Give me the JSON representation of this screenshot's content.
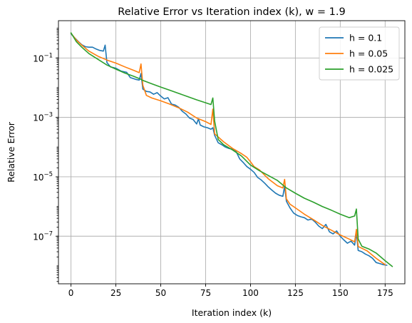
{
  "chart_data": {
    "type": "line",
    "title": "Relative Error vs Iteration index (k), w = 1.9",
    "xlabel": "Iteration index (k)",
    "ylabel": "Relative Error",
    "xlim": [
      -7,
      186
    ],
    "ylim": [
      2.5e-09,
      1.8
    ],
    "yscale": "log",
    "grid": true,
    "legend_position": "upper right",
    "x_ticks": [
      0,
      25,
      50,
      75,
      100,
      125,
      150,
      175
    ],
    "x_tick_labels": [
      "0",
      "25",
      "50",
      "75",
      "100",
      "125",
      "150",
      "175"
    ],
    "y_ticks": [
      0.1,
      0.001,
      1e-05,
      1e-07
    ],
    "y_tick_labels": [
      {
        "base": "10",
        "exp": "−1"
      },
      {
        "base": "10",
        "exp": "−3"
      },
      {
        "base": "10",
        "exp": "−5"
      },
      {
        "base": "10",
        "exp": "−7"
      }
    ],
    "series": [
      {
        "name": "h = 0.1",
        "color": "#1f77b4",
        "points": [
          [
            0,
            0.65
          ],
          [
            2,
            0.48
          ],
          [
            4,
            0.36
          ],
          [
            6,
            0.28
          ],
          [
            8,
            0.24
          ],
          [
            10,
            0.23
          ],
          [
            12,
            0.23
          ],
          [
            14,
            0.2
          ],
          [
            16,
            0.18
          ],
          [
            18,
            0.17
          ],
          [
            19,
            0.27
          ],
          [
            20,
            0.07
          ],
          [
            22,
            0.05
          ],
          [
            25,
            0.045
          ],
          [
            28,
            0.036
          ],
          [
            31,
            0.033
          ],
          [
            33,
            0.022
          ],
          [
            36,
            0.019
          ],
          [
            38,
            0.018
          ],
          [
            39,
            0.03
          ],
          [
            40,
            0.009
          ],
          [
            42,
            0.0075
          ],
          [
            44,
            0.0072
          ],
          [
            46,
            0.006
          ],
          [
            48,
            0.0068
          ],
          [
            50,
            0.0052
          ],
          [
            52,
            0.0042
          ],
          [
            54,
            0.0046
          ],
          [
            56,
            0.0028
          ],
          [
            58,
            0.0026
          ],
          [
            60,
            0.0022
          ],
          [
            62,
            0.0016
          ],
          [
            64,
            0.0013
          ],
          [
            66,
            0.00095
          ],
          [
            68,
            0.00085
          ],
          [
            70,
            0.0006
          ],
          [
            71,
            0.0009
          ],
          [
            72,
            0.00055
          ],
          [
            74,
            0.00048
          ],
          [
            76,
            0.00045
          ],
          [
            78,
            0.0004
          ],
          [
            79,
            0.00045
          ],
          [
            80,
            0.00025
          ],
          [
            82,
            0.00014
          ],
          [
            84,
            0.00012
          ],
          [
            86,
            0.0001
          ],
          [
            88,
            9e-05
          ],
          [
            90,
            8.5e-05
          ],
          [
            92,
            7e-05
          ],
          [
            94,
            4e-05
          ],
          [
            96,
            3e-05
          ],
          [
            98,
            2.2e-05
          ],
          [
            100,
            1.8e-05
          ],
          [
            102,
            1.4e-05
          ],
          [
            104,
            9.5e-06
          ],
          [
            106,
            7.8e-06
          ],
          [
            108,
            6e-06
          ],
          [
            110,
            4.5e-06
          ],
          [
            112,
            3.5e-06
          ],
          [
            114,
            2.8e-06
          ],
          [
            116,
            2.4e-06
          ],
          [
            118,
            2.2e-06
          ],
          [
            119,
            4.8e-06
          ],
          [
            120,
            1.5e-06
          ],
          [
            122,
            9e-07
          ],
          [
            124,
            6e-07
          ],
          [
            126,
            5e-07
          ],
          [
            128,
            4.5e-07
          ],
          [
            130,
            4.2e-07
          ],
          [
            132,
            3.5e-07
          ],
          [
            134,
            3.8e-07
          ],
          [
            136,
            3e-07
          ],
          [
            138,
            2.2e-07
          ],
          [
            140,
            1.8e-07
          ],
          [
            142,
            2.5e-07
          ],
          [
            144,
            1.4e-07
          ],
          [
            146,
            1.2e-07
          ],
          [
            148,
            1.5e-07
          ],
          [
            150,
            1e-07
          ],
          [
            152,
            7.5e-08
          ],
          [
            154,
            5.8e-08
          ],
          [
            156,
            6.8e-08
          ],
          [
            158,
            5e-08
          ],
          [
            159,
            1.3e-07
          ],
          [
            160,
            3.3e-08
          ],
          [
            162,
            3e-08
          ],
          [
            164,
            2.5e-08
          ],
          [
            166,
            2.2e-08
          ],
          [
            168,
            1.8e-08
          ],
          [
            170,
            1.3e-08
          ],
          [
            172,
            1.2e-08
          ],
          [
            174,
            1.1e-08
          ],
          [
            176,
            1.05e-08
          ]
        ]
      },
      {
        "name": "h = 0.05",
        "color": "#ff7f0e",
        "points": [
          [
            0,
            0.68
          ],
          [
            3,
            0.4
          ],
          [
            6,
            0.27
          ],
          [
            10,
            0.17
          ],
          [
            15,
            0.115
          ],
          [
            20,
            0.085
          ],
          [
            25,
            0.067
          ],
          [
            30,
            0.05
          ],
          [
            35,
            0.038
          ],
          [
            38,
            0.032
          ],
          [
            39,
            0.063
          ],
          [
            40,
            0.012
          ],
          [
            42,
            0.0055
          ],
          [
            45,
            0.0045
          ],
          [
            50,
            0.0036
          ],
          [
            55,
            0.0028
          ],
          [
            60,
            0.0021
          ],
          [
            65,
            0.0015
          ],
          [
            70,
            0.00095
          ],
          [
            75,
            0.00072
          ],
          [
            78,
            0.00058
          ],
          [
            79,
            0.0019
          ],
          [
            80,
            0.00028
          ],
          [
            85,
            0.00015
          ],
          [
            90,
            9e-05
          ],
          [
            95,
            6e-05
          ],
          [
            98,
            4.5e-05
          ],
          [
            100,
            3.2e-05
          ],
          [
            102,
            2.2e-05
          ],
          [
            105,
            1.7e-05
          ],
          [
            110,
            8.5e-06
          ],
          [
            115,
            5e-06
          ],
          [
            118,
            4.2e-06
          ],
          [
            119,
            8.2e-06
          ],
          [
            120,
            1.8e-06
          ],
          [
            122,
            1.2e-06
          ],
          [
            125,
            9e-07
          ],
          [
            130,
            5.5e-07
          ],
          [
            135,
            3.6e-07
          ],
          [
            140,
            2.3e-07
          ],
          [
            145,
            1.6e-07
          ],
          [
            150,
            1.1e-07
          ],
          [
            155,
            8e-08
          ],
          [
            158,
            6.5e-08
          ],
          [
            159,
            1.7e-07
          ],
          [
            160,
            4.5e-08
          ],
          [
            165,
            3.2e-08
          ],
          [
            170,
            1.8e-08
          ],
          [
            175,
            1.1e-08
          ]
        ]
      },
      {
        "name": "h = 0.025",
        "color": "#2ca02c",
        "points": [
          [
            0,
            0.7
          ],
          [
            3,
            0.35
          ],
          [
            6,
            0.23
          ],
          [
            10,
            0.14
          ],
          [
            15,
            0.09
          ],
          [
            20,
            0.058
          ],
          [
            25,
            0.042
          ],
          [
            30,
            0.031
          ],
          [
            35,
            0.024
          ],
          [
            39,
            0.019
          ],
          [
            40,
            0.0175
          ],
          [
            45,
            0.0135
          ],
          [
            50,
            0.0105
          ],
          [
            55,
            0.0082
          ],
          [
            60,
            0.0064
          ],
          [
            65,
            0.005
          ],
          [
            70,
            0.0039
          ],
          [
            75,
            0.0031
          ],
          [
            78,
            0.0027
          ],
          [
            79,
            0.0045
          ],
          [
            80,
            0.00075
          ],
          [
            82,
            0.00018
          ],
          [
            85,
            0.00012
          ],
          [
            90,
            8e-05
          ],
          [
            95,
            5e-05
          ],
          [
            100,
            2.5e-05
          ],
          [
            105,
            1.6e-05
          ],
          [
            110,
            1.1e-05
          ],
          [
            115,
            7.5e-06
          ],
          [
            120,
            4.2e-06
          ],
          [
            125,
            2.8e-06
          ],
          [
            130,
            1.9e-06
          ],
          [
            135,
            1.4e-06
          ],
          [
            140,
            1e-06
          ],
          [
            145,
            7.5e-07
          ],
          [
            150,
            5.5e-07
          ],
          [
            155,
            4.2e-07
          ],
          [
            158,
            4.8e-07
          ],
          [
            159,
            8.2e-07
          ],
          [
            160,
            8e-08
          ],
          [
            162,
            4.6e-08
          ],
          [
            166,
            3.7e-08
          ],
          [
            170,
            2.7e-08
          ],
          [
            175,
            1.5e-08
          ],
          [
            179,
            9.5e-09
          ]
        ]
      }
    ]
  }
}
